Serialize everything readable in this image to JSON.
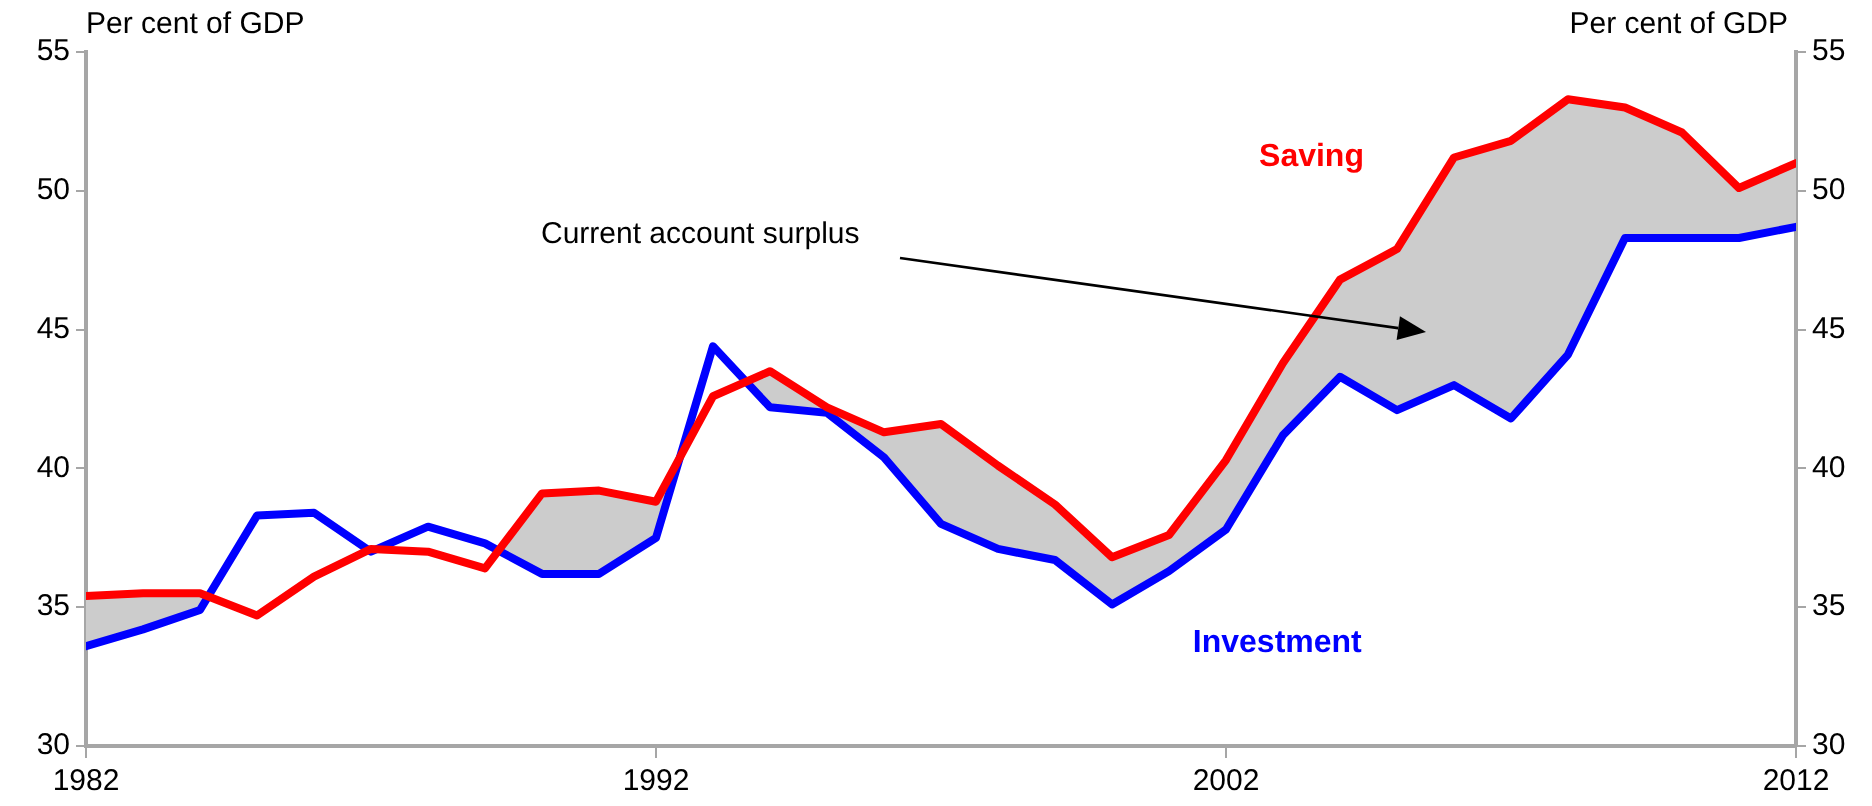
{
  "chart_data": {
    "type": "line",
    "ylabel": "Per cent of GDP",
    "y2label": "Per cent of GDP",
    "x": [
      1982,
      1983,
      1984,
      1985,
      1986,
      1987,
      1988,
      1989,
      1990,
      1991,
      1992,
      1993,
      1994,
      1995,
      1996,
      1997,
      1998,
      1999,
      2000,
      2001,
      2002,
      2003,
      2004,
      2005,
      2006,
      2007,
      2008,
      2009,
      2010,
      2011,
      2012
    ],
    "series": [
      {
        "name": "Saving",
        "color": "#ff0000",
        "values": [
          35.4,
          35.5,
          35.5,
          34.7,
          36.1,
          37.1,
          37.0,
          36.4,
          39.1,
          39.2,
          38.8,
          42.6,
          43.5,
          42.2,
          41.3,
          41.6,
          40.1,
          38.7,
          36.8,
          37.6,
          40.3,
          43.8,
          46.8,
          47.9,
          51.2,
          51.8,
          53.3,
          53.0,
          52.1,
          50.1,
          51.0
        ],
        "upper": [
          35.4,
          35.5,
          35.5,
          34.7,
          36.1,
          37.1,
          37.0,
          36.4,
          39.1,
          39.2,
          38.8,
          42.6,
          43.5,
          42.2,
          41.3,
          41.6,
          40.1,
          38.7,
          36.8,
          37.6,
          40.3,
          43.8,
          46.8,
          47.9,
          51.2,
          51.8,
          53.3,
          53.0,
          52.1,
          50.1,
          51.0
        ],
        "lower": [
          33.6,
          34.2,
          34.9,
          38.3,
          38.4,
          37.0,
          37.9,
          37.3,
          36.2,
          36.2,
          37.5,
          44.4,
          42.2,
          42.0,
          40.4,
          38.0,
          37.1,
          36.7,
          35.1,
          36.3,
          37.8,
          41.2,
          43.3,
          42.1,
          43.0,
          41.8,
          44.1,
          48.3,
          48.3,
          48.3,
          48.7
        ]
      },
      {
        "name": "Investment",
        "color": "#0000ff",
        "values": [
          33.6,
          34.2,
          34.9,
          38.3,
          38.4,
          37.0,
          37.9,
          37.3,
          36.2,
          36.2,
          37.5,
          44.4,
          42.2,
          42.0,
          40.4,
          38.0,
          37.1,
          36.7,
          35.1,
          36.3,
          37.8,
          41.2,
          43.3,
          42.1,
          43.0,
          41.8,
          44.1,
          48.3,
          48.3,
          48.3,
          48.7
        ]
      }
    ],
    "xlim": [
      1982,
      2012
    ],
    "xticks": [
      1982,
      1992,
      2002,
      2012
    ],
    "ylim": [
      30,
      55
    ],
    "yticks": [
      30,
      35,
      40,
      45,
      50,
      55
    ],
    "y2lim": [
      30,
      55
    ],
    "y2ticks": [
      30,
      35,
      40,
      45,
      50,
      55
    ],
    "annotations": [
      "Current account surplus"
    ],
    "grid": false,
    "legend": false,
    "marker": "none",
    "line_style": "solid"
  }
}
